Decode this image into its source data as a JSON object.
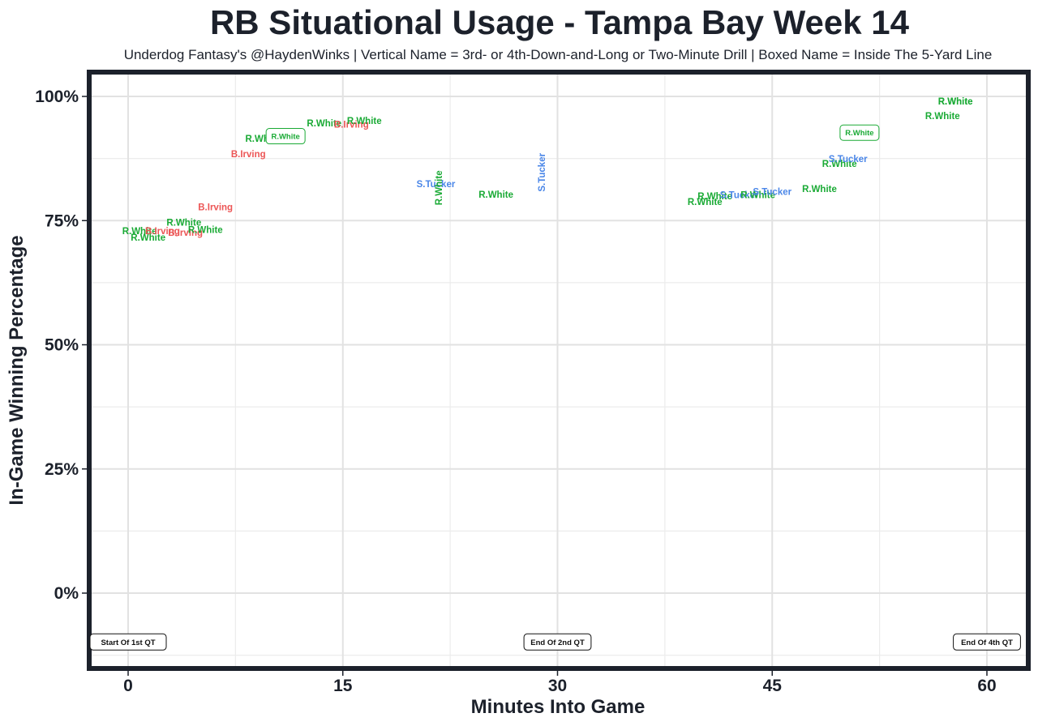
{
  "chart_data": {
    "type": "scatter",
    "title": "RB Situational Usage - Tampa Bay Week 14",
    "subtitle": "Underdog Fantasy's @HaydenWinks | Vertical Name = 3rd- or 4th-Down-and-Long or Two-Minute Drill | Boxed Name = Inside The 5-Yard Line",
    "xlabel": "Minutes Into Game",
    "ylabel": "In-Game Winning Percentage",
    "xlim": [
      -3,
      63
    ],
    "ylim": [
      -15,
      105
    ],
    "x_ticks": [
      0,
      15,
      30,
      45,
      60
    ],
    "x_tick_labels": [
      "0",
      "15",
      "30",
      "45",
      "60"
    ],
    "y_ticks": [
      0,
      25,
      50,
      75,
      100
    ],
    "y_tick_labels": [
      "0%",
      "25%",
      "50%",
      "75%",
      "100%"
    ],
    "grid": true,
    "legend": "none",
    "player_colors": {
      "R.White": "#1aaa35",
      "B.Irving": "#ec5656",
      "S.Tucker": "#4a86e8"
    },
    "points": [
      {
        "player": "R.White",
        "x": 0.8,
        "y": 72.9,
        "style": "normal"
      },
      {
        "player": "R.White",
        "x": 1.4,
        "y": 71.6,
        "style": "normal"
      },
      {
        "player": "B.Irving",
        "x": 2.4,
        "y": 72.9,
        "style": "normal"
      },
      {
        "player": "R.White",
        "x": 3.9,
        "y": 74.6,
        "style": "normal"
      },
      {
        "player": "B.Irving",
        "x": 4.0,
        "y": 72.6,
        "style": "normal"
      },
      {
        "player": "R.White",
        "x": 5.4,
        "y": 73.2,
        "style": "normal"
      },
      {
        "player": "B.Irving",
        "x": 6.1,
        "y": 77.7,
        "style": "normal"
      },
      {
        "player": "B.Irving",
        "x": 8.4,
        "y": 88.4,
        "style": "normal"
      },
      {
        "player": "R.White",
        "x": 9.4,
        "y": 91.5,
        "style": "normal"
      },
      {
        "player": "R.White",
        "x": 11.0,
        "y": 92.0,
        "style": "boxed"
      },
      {
        "player": "R.White",
        "x": 13.7,
        "y": 94.6,
        "style": "normal"
      },
      {
        "player": "B.Irving",
        "x": 15.6,
        "y": 94.4,
        "style": "normal"
      },
      {
        "player": "R.White",
        "x": 16.5,
        "y": 95.1,
        "style": "normal"
      },
      {
        "player": "S.Tucker",
        "x": 21.5,
        "y": 82.4,
        "style": "normal"
      },
      {
        "player": "R.White",
        "x": 21.7,
        "y": 81.6,
        "style": "vertical"
      },
      {
        "player": "R.White",
        "x": 25.7,
        "y": 80.3,
        "style": "normal"
      },
      {
        "player": "S.Tucker",
        "x": 28.9,
        "y": 84.7,
        "style": "vertical"
      },
      {
        "player": "R.White",
        "x": 40.3,
        "y": 78.8,
        "style": "normal"
      },
      {
        "player": "R.White",
        "x": 41.0,
        "y": 79.9,
        "style": "normal"
      },
      {
        "player": "S.Tucker",
        "x": 42.7,
        "y": 80.2,
        "style": "normal"
      },
      {
        "player": "R.White",
        "x": 44.0,
        "y": 80.2,
        "style": "normal"
      },
      {
        "player": "S.Tucker",
        "x": 45.0,
        "y": 80.8,
        "style": "normal"
      },
      {
        "player": "R.White",
        "x": 48.3,
        "y": 81.4,
        "style": "normal"
      },
      {
        "player": "R.White",
        "x": 49.7,
        "y": 86.5,
        "style": "normal"
      },
      {
        "player": "S.Tucker",
        "x": 50.3,
        "y": 87.4,
        "style": "normal"
      },
      {
        "player": "R.White",
        "x": 51.1,
        "y": 92.7,
        "style": "boxed"
      },
      {
        "player": "R.White",
        "x": 56.9,
        "y": 96.1,
        "style": "normal"
      },
      {
        "player": "R.White",
        "x": 57.8,
        "y": 99.0,
        "style": "normal"
      },
      {
        "player": "R.White",
        "x": 57.8,
        "y": 99.0,
        "style": "normal"
      }
    ],
    "annotations": [
      {
        "text": "Start Of 1st QT",
        "x": 0,
        "y": -10
      },
      {
        "text": "End Of 2nd QT",
        "x": 30,
        "y": -10
      },
      {
        "text": "End Of 4th QT",
        "x": 60,
        "y": -10
      }
    ]
  }
}
